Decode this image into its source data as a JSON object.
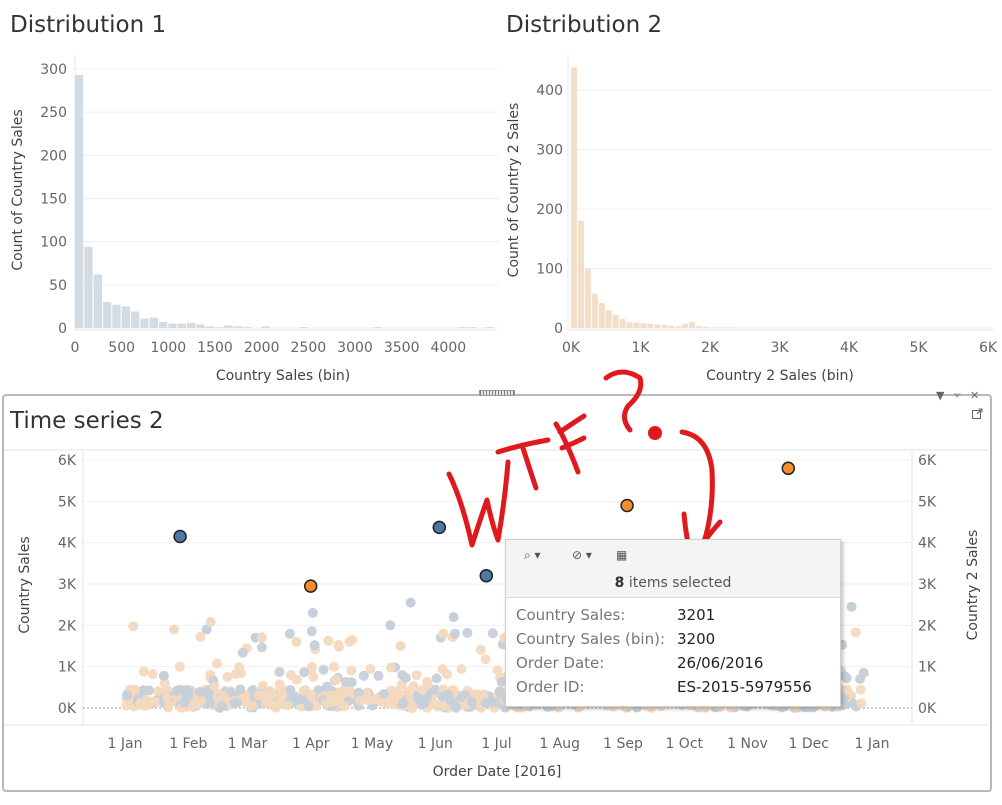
{
  "dist1": {
    "title": "Distribution 1",
    "xlabel": "Country Sales (bin)",
    "ylabel": "Count of Country Sales",
    "ticks_x": [
      "0",
      "500",
      "1000",
      "1500",
      "2000",
      "2500",
      "3000",
      "3500",
      "4000"
    ],
    "ticks_y": [
      "0",
      "50",
      "100",
      "150",
      "200",
      "250",
      "300"
    ],
    "color": "#d3dbe3"
  },
  "dist2": {
    "title": "Distribution 2",
    "xlabel": "Country 2 Sales (bin)",
    "ylabel": "Count of Country 2 Sales",
    "ticks_x": [
      "0K",
      "1K",
      "2K",
      "3K",
      "4K",
      "5K",
      "6K"
    ],
    "ticks_y": [
      "0",
      "100",
      "200",
      "300",
      "400"
    ],
    "color": "#f3dec7"
  },
  "ts": {
    "title": "Time series 2",
    "ylabel_left": "Country Sales",
    "ylabel_right": "Country 2 Sales",
    "xlabel": "Order Date [2016]",
    "ticks_y": [
      "0K",
      "1K",
      "2K",
      "3K",
      "4K",
      "5K",
      "6K"
    ],
    "months": [
      "1 Jan",
      "1 Feb",
      "1 Mar",
      "1 Apr",
      "1 May",
      "1 Jun",
      "1 Jul",
      "1 Aug",
      "1 Sep",
      "1 Oct",
      "1 Nov",
      "1 Dec",
      "1 Jan"
    ],
    "colors": {
      "series1": "#c6d0da",
      "series2": "#f3d9bf",
      "sel1": "#4e79a7",
      "sel2": "#f28e2b"
    }
  },
  "tooltip": {
    "count": "8",
    "count_text": "items selected",
    "rows": [
      {
        "key": "Country Sales:",
        "value": "3201"
      },
      {
        "key": "Country Sales (bin):",
        "value": "3200"
      },
      {
        "key": "Order Date:",
        "value": "26/06/2016"
      },
      {
        "key": "Order ID:",
        "value": "ES-2015-5979556"
      }
    ]
  },
  "annotation": {
    "text": "WTF?",
    "color": "#e0191e"
  },
  "chart_data": [
    {
      "type": "bar",
      "title": "Distribution 1",
      "xlabel": "Country Sales (bin)",
      "ylabel": "Count of Country Sales",
      "bin_width": 100,
      "xlim": [
        0,
        4500
      ],
      "ylim": [
        0,
        310
      ],
      "categories": [
        0,
        100,
        200,
        300,
        400,
        500,
        600,
        700,
        800,
        900,
        1000,
        1100,
        1200,
        1300,
        1400,
        1500,
        1600,
        1700,
        1800,
        1900,
        2000,
        2100,
        2200,
        2300,
        2400,
        2500,
        2600,
        2700,
        2800,
        2900,
        3000,
        3100,
        3200,
        3300,
        3400,
        3500,
        3600,
        3700,
        3800,
        3900,
        4000,
        4100,
        4200,
        4300,
        4400
      ],
      "values": [
        293,
        94,
        62,
        30,
        27,
        25,
        19,
        11,
        12,
        7,
        5,
        5,
        6,
        4,
        2,
        1,
        3,
        2,
        1,
        0,
        2,
        0,
        0,
        0,
        1,
        0,
        0,
        0,
        0,
        0,
        0,
        0,
        1,
        0,
        0,
        0,
        0,
        0,
        0,
        0,
        0,
        1,
        1,
        0,
        1
      ]
    },
    {
      "type": "bar",
      "title": "Distribution 2",
      "xlabel": "Country 2 Sales (bin)",
      "ylabel": "Count of Country 2 Sales",
      "bin_width": 100,
      "xlim": [
        0,
        6000
      ],
      "ylim": [
        0,
        440
      ],
      "categories": [
        0,
        100,
        200,
        300,
        400,
        500,
        600,
        700,
        800,
        900,
        1000,
        1100,
        1200,
        1300,
        1400,
        1500,
        1600,
        1700,
        1800,
        1900,
        2000,
        2100,
        2200,
        2300,
        2400,
        2500,
        2600,
        2700,
        2800,
        2900,
        3000,
        3100,
        3200,
        3300,
        3400,
        3500,
        3600,
        3700,
        3800,
        3900,
        4000,
        4100,
        4200,
        4300,
        4400,
        4500,
        4600,
        4700,
        4800,
        4900,
        5000,
        5100,
        5200,
        5300,
        5400,
        5500,
        5600,
        5700,
        5800,
        5900
      ],
      "values": [
        438,
        180,
        100,
        58,
        42,
        30,
        22,
        15,
        10,
        9,
        8,
        7,
        6,
        5,
        4,
        3,
        7,
        10,
        3,
        2,
        1,
        1,
        1,
        1,
        0,
        0,
        0,
        0,
        0,
        1,
        0,
        0,
        0,
        0,
        0,
        0,
        0,
        0,
        0,
        0,
        0,
        0,
        0,
        0,
        0,
        0,
        0,
        0,
        0,
        0,
        0,
        0,
        0,
        0,
        0,
        0,
        0,
        0,
        1,
        0
      ]
    },
    {
      "type": "scatter",
      "title": "Time series 2",
      "xlabel": "Order Date [2016]",
      "ylabel": "Country Sales",
      "ylabel_right": "Country 2 Sales",
      "ylim": [
        0,
        6000
      ],
      "series": [
        {
          "name": "Country Sales",
          "x": [
            "2016-01-28",
            "2016-06-03",
            "2016-06-26",
            "2016-01-20",
            "2016-02-10",
            "2016-03-05",
            "2016-04-02",
            "2016-05-10",
            "2016-05-20",
            "2016-06-10",
            "2016-07-20",
            "2016-08-12",
            "2016-09-05",
            "2016-10-10",
            "2016-11-03",
            "2016-12-22",
            "2016-12-28"
          ],
          "y": [
            4150,
            4370,
            3201,
            780,
            1900,
            1700,
            2300,
            2000,
            2550,
            2200,
            1900,
            1650,
            1550,
            1300,
            1200,
            2450,
            850
          ]
        },
        {
          "name": "Country 2 Sales",
          "x": [
            "2016-04-01",
            "2016-09-03",
            "2016-11-21",
            "2016-01-05",
            "2016-01-25",
            "2016-02-12",
            "2016-03-08",
            "2016-03-25",
            "2016-04-20",
            "2016-05-15",
            "2016-06-05",
            "2016-07-05",
            "2016-08-20",
            "2016-10-02",
            "2016-11-10",
            "2016-12-15"
          ],
          "y": [
            2950,
            4900,
            5800,
            1980,
            1900,
            2080,
            1700,
            1600,
            1600,
            1500,
            1800,
            1700,
            1400,
            1300,
            1450,
            1500
          ]
        }
      ],
      "selected_points": 8
    }
  ]
}
